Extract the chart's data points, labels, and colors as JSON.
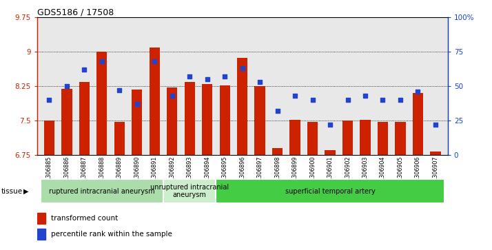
{
  "title": "GDS5186 / 17508",
  "samples": [
    "GSM1306885",
    "GSM1306886",
    "GSM1306887",
    "GSM1306888",
    "GSM1306889",
    "GSM1306890",
    "GSM1306891",
    "GSM1306892",
    "GSM1306893",
    "GSM1306894",
    "GSM1306895",
    "GSM1306896",
    "GSM1306897",
    "GSM1306898",
    "GSM1306899",
    "GSM1306900",
    "GSM1306901",
    "GSM1306902",
    "GSM1306903",
    "GSM1306904",
    "GSM1306905",
    "GSM1306906",
    "GSM1306907"
  ],
  "transformed_count": [
    7.5,
    8.2,
    8.35,
    9.0,
    7.47,
    8.18,
    9.1,
    8.22,
    8.35,
    8.3,
    8.27,
    8.87,
    8.25,
    6.9,
    7.52,
    7.47,
    6.85,
    7.5,
    7.52,
    7.47,
    7.47,
    8.1,
    6.82
  ],
  "percentile_rank": [
    40,
    50,
    62,
    68,
    47,
    37,
    68,
    43,
    57,
    55,
    57,
    63,
    53,
    32,
    43,
    40,
    22,
    40,
    43,
    40,
    40,
    46,
    22
  ],
  "ylim_left": [
    6.75,
    9.75
  ],
  "ylim_right": [
    0,
    100
  ],
  "yticks_left": [
    6.75,
    7.5,
    8.25,
    9.0,
    9.75
  ],
  "yticks_right": [
    0,
    25,
    50,
    75,
    100
  ],
  "ytick_labels_left": [
    "6.75",
    "7.5",
    "8.25",
    "9",
    "9.75"
  ],
  "ytick_labels_right": [
    "0",
    "25",
    "50",
    "75",
    "100%"
  ],
  "grid_values": [
    7.5,
    8.25,
    9.0
  ],
  "bar_color": "#cc2200",
  "dot_color": "#2244cc",
  "bar_bottom": 6.75,
  "groups": [
    {
      "label": "ruptured intracranial aneurysm",
      "start": 0,
      "end": 7,
      "color": "#aaddaa"
    },
    {
      "label": "unruptured intracranial\naneurysm",
      "start": 7,
      "end": 10,
      "color": "#cceecc"
    },
    {
      "label": "superficial temporal artery",
      "start": 10,
      "end": 23,
      "color": "#44cc44"
    }
  ],
  "xlabel_tissue": "tissue",
  "legend_bar_label": "transformed count",
  "legend_dot_label": "percentile rank within the sample",
  "left_axis_color": "#cc2200",
  "right_axis_color": "#1144cc",
  "plot_bg": "#e8e8e8",
  "fig_bg": "#ffffff"
}
